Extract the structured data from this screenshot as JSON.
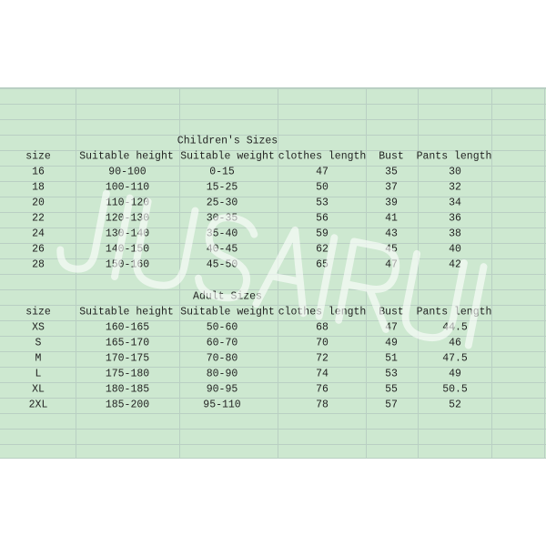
{
  "children": {
    "title": "Children's Sizes",
    "headers": [
      "size",
      "Suitable height",
      "Suitable weight",
      "clothes length",
      "Bust",
      "Pants length"
    ],
    "rows": [
      [
        "16",
        "90-100",
        "0-15",
        "47",
        "35",
        "30"
      ],
      [
        "18",
        "100-110",
        "15-25",
        "50",
        "37",
        "32"
      ],
      [
        "20",
        "110-120",
        "25-30",
        "53",
        "39",
        "34"
      ],
      [
        "22",
        "120-130",
        "30-35",
        "56",
        "41",
        "36"
      ],
      [
        "24",
        "130-140",
        "35-40",
        "59",
        "43",
        "38"
      ],
      [
        "26",
        "140-150",
        "40-45",
        "62",
        "45",
        "40"
      ],
      [
        "28",
        "150-160",
        "45-50",
        "65",
        "47",
        "42"
      ]
    ]
  },
  "adult": {
    "title": "Adult Sizes",
    "headers": [
      "size",
      "Suitable height",
      "Suitable weight",
      "clothes length",
      "Bust",
      "Pants length"
    ],
    "rows": [
      [
        "XS",
        "160-165",
        "50-60",
        "68",
        "47",
        "44.5"
      ],
      [
        "S",
        "165-170",
        "60-70",
        "70",
        "49",
        "46"
      ],
      [
        "M",
        "170-175",
        "70-80",
        "72",
        "51",
        "47.5"
      ],
      [
        "L",
        "175-180",
        "80-90",
        "74",
        "53",
        "49"
      ],
      [
        "XL",
        "180-185",
        "90-95",
        "76",
        "55",
        "50.5"
      ],
      [
        "2XL",
        "185-200",
        "95-110",
        "78",
        "57",
        "52"
      ]
    ]
  },
  "watermark": "JIUSAIRUI",
  "colors": {
    "sheet_background": "#cde8d0",
    "grid": "#b9cfc3"
  }
}
